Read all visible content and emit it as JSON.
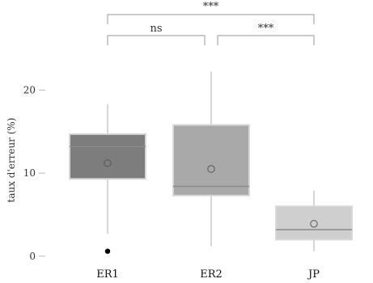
{
  "chart_data": {
    "type": "box",
    "title": "",
    "xlabel": "",
    "ylabel": "taux d'erreur (%)",
    "ylim": [
      -0.5,
      25
    ],
    "yticks": [
      0,
      10,
      20
    ],
    "grid": false,
    "categories": [
      "ER1",
      "ER2",
      "JP"
    ],
    "boxes": [
      {
        "category": "ER1",
        "whisker_low": 2.7,
        "q1": 9.3,
        "median": 13.2,
        "q3": 14.7,
        "whisker_high": 18.3,
        "mean": 11.2,
        "outliers": [
          0.6
        ],
        "color": "#7d7d7d"
      },
      {
        "category": "ER2",
        "whisker_low": 1.2,
        "q1": 7.3,
        "median": 8.4,
        "q3": 15.8,
        "whisker_high": 22.2,
        "mean": 10.5,
        "outliers": [],
        "color": "#a9a9a9"
      },
      {
        "category": "JP",
        "whisker_low": 0.6,
        "q1": 2.0,
        "median": 3.2,
        "q3": 6.0,
        "whisker_high": 7.9,
        "mean": 3.9,
        "outliers": [],
        "color": "#cfcfcf"
      }
    ],
    "significance": [
      {
        "from": "ER1",
        "to": "JP",
        "label": "***"
      },
      {
        "from": "ER1",
        "to": "ER2",
        "label": "ns"
      },
      {
        "from": "ER2",
        "to": "JP",
        "label": "***"
      }
    ]
  }
}
